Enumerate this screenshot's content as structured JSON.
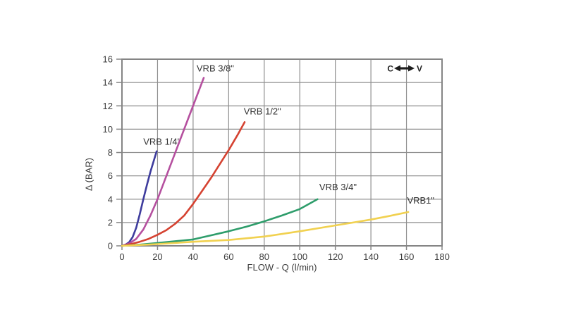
{
  "page": {
    "background": "#ffffff",
    "description": "Pressure drop vs flow performance chart for VRB valves"
  },
  "annotation": {
    "left_label": "C",
    "right_label": "V",
    "arrow_icon": "double-headed-arrow",
    "arrow_color": "#1d1d1d"
  },
  "chart_data": {
    "type": "line",
    "title": "",
    "xlabel": "FLOW - Q (l/min)",
    "ylabel": "Δ (BAR)",
    "xlim": [
      0,
      180
    ],
    "ylim": [
      0,
      16
    ],
    "x_ticks": [
      0,
      20,
      40,
      60,
      80,
      100,
      120,
      140,
      160,
      180
    ],
    "y_ticks": [
      0,
      2,
      4,
      6,
      8,
      10,
      12,
      14,
      16
    ],
    "grid": true,
    "legend_position": "labels-on-curves",
    "colors": {
      "grid": "#8f8f8f",
      "border": "#858585",
      "text": "#3d3d3d"
    },
    "series": [
      {
        "name": "VRB 1/4\"",
        "color": "#3e3c9d",
        "label_at": [
          22.5,
          8.9
        ],
        "points": [
          [
            0,
            0
          ],
          [
            2,
            0.1
          ],
          [
            4,
            0.3
          ],
          [
            6,
            0.75
          ],
          [
            8,
            1.55
          ],
          [
            10,
            2.7
          ],
          [
            12,
            4.0
          ],
          [
            14,
            5.2
          ],
          [
            16,
            6.35
          ],
          [
            18,
            7.35
          ],
          [
            19.5,
            8.1
          ]
        ]
      },
      {
        "name": "VRB 3/8\"",
        "color": "#b5509f",
        "label_at": [
          52.5,
          15.2
        ],
        "points": [
          [
            0,
            0
          ],
          [
            4,
            0.2
          ],
          [
            8,
            0.6
          ],
          [
            12,
            1.4
          ],
          [
            16,
            2.6
          ],
          [
            20,
            4.0
          ],
          [
            24,
            5.6
          ],
          [
            28,
            7.2
          ],
          [
            33,
            9.2
          ],
          [
            38,
            11.2
          ],
          [
            42,
            12.8
          ],
          [
            46,
            14.4
          ]
        ]
      },
      {
        "name": "VRB 1/2\"",
        "color": "#d54231",
        "label_at": [
          79,
          11.5
        ],
        "points": [
          [
            0,
            0
          ],
          [
            5,
            0.15
          ],
          [
            10,
            0.35
          ],
          [
            15,
            0.6
          ],
          [
            20,
            0.95
          ],
          [
            25,
            1.35
          ],
          [
            30,
            1.9
          ],
          [
            35,
            2.6
          ],
          [
            40,
            3.6
          ],
          [
            45,
            4.7
          ],
          [
            50,
            5.8
          ],
          [
            55,
            7.0
          ],
          [
            60,
            8.2
          ],
          [
            65,
            9.5
          ],
          [
            69,
            10.6
          ]
        ]
      },
      {
        "name": "VRB 3/4\"",
        "color": "#2e9d6b",
        "label_at": [
          121.5,
          5.0
        ],
        "points": [
          [
            0,
            0
          ],
          [
            10,
            0.1
          ],
          [
            20,
            0.25
          ],
          [
            30,
            0.4
          ],
          [
            40,
            0.55
          ],
          [
            50,
            0.9
          ],
          [
            60,
            1.25
          ],
          [
            70,
            1.65
          ],
          [
            80,
            2.1
          ],
          [
            90,
            2.6
          ],
          [
            100,
            3.15
          ],
          [
            110,
            4.0
          ]
        ]
      },
      {
        "name": "VRB1\"",
        "color": "#f1d150",
        "label_at": [
          168,
          3.85
        ],
        "points": [
          [
            0,
            0
          ],
          [
            20,
            0.15
          ],
          [
            40,
            0.35
          ],
          [
            60,
            0.5
          ],
          [
            80,
            0.8
          ],
          [
            100,
            1.25
          ],
          [
            120,
            1.75
          ],
          [
            140,
            2.25
          ],
          [
            150,
            2.55
          ],
          [
            161,
            2.9
          ]
        ]
      }
    ]
  }
}
